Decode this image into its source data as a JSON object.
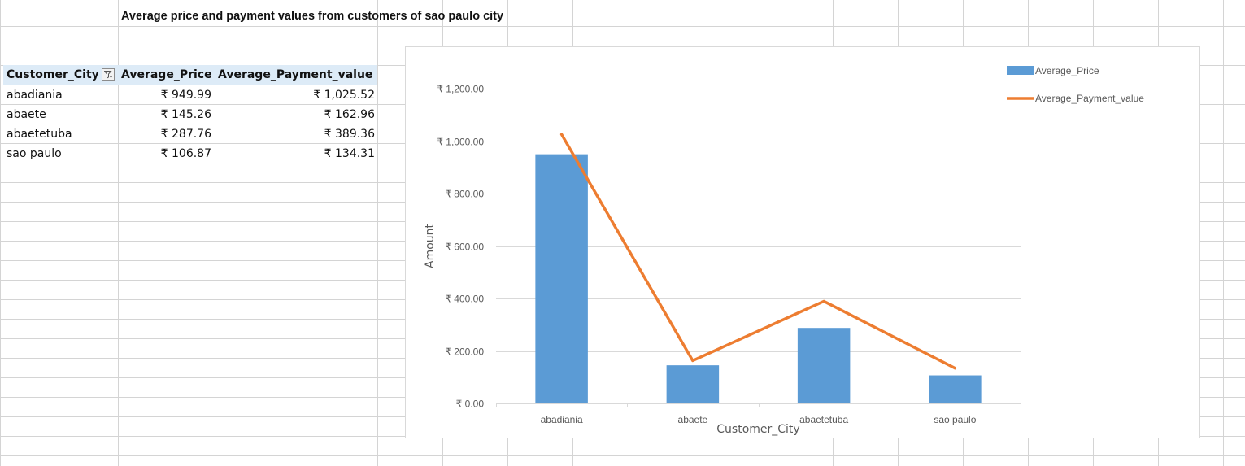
{
  "sheet": {
    "title": "Average price and payment values from customers of sao paulo city"
  },
  "pivot": {
    "headers": [
      "Customer_City",
      "Average_Price",
      "Average_Payment_value"
    ],
    "rows": [
      [
        "abadiania",
        "₹ 949.99",
        "₹ 1,025.52"
      ],
      [
        "abaete",
        "₹ 145.26",
        "₹ 162.96"
      ],
      [
        "abaetetuba",
        "₹ 287.76",
        "₹ 389.36"
      ],
      [
        "sao paulo",
        "₹ 106.87",
        "₹ 134.31"
      ]
    ],
    "filter_icon": "filter-dropdown-icon"
  },
  "chart_data": {
    "type": "bar",
    "categories": [
      "abadiania",
      "abaete",
      "abaetetuba",
      "sao paulo"
    ],
    "series": [
      {
        "name": "Average_Price",
        "type": "bar",
        "values": [
          949.99,
          145.26,
          287.76,
          106.87
        ],
        "color": "#5b9bd5"
      },
      {
        "name": "Average_Payment_value",
        "type": "line",
        "values": [
          1025.52,
          162.96,
          389.36,
          134.31
        ],
        "color": "#ed7d31"
      }
    ],
    "xlabel": "Customer_City",
    "ylabel": "Amount",
    "ylim": [
      0,
      1200
    ],
    "yticks": [
      0,
      200,
      400,
      600,
      800,
      1000,
      1200
    ],
    "ytick_labels": [
      "₹ 0.00",
      "₹ 200.00",
      "₹ 400.00",
      "₹ 600.00",
      "₹ 800.00",
      "₹ 1,000.00",
      "₹ 1,200.00"
    ],
    "grid": true,
    "legend": "top-right"
  }
}
